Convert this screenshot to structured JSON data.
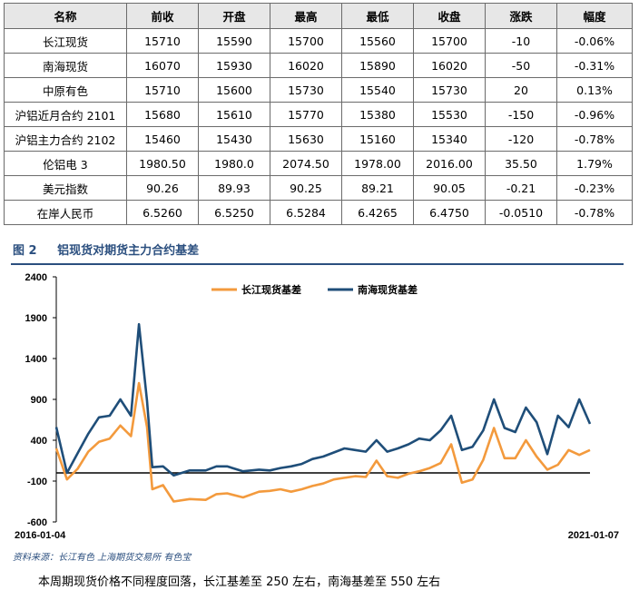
{
  "table": {
    "headers": [
      "名称",
      "前收",
      "开盘",
      "最高",
      "最低",
      "收盘",
      "涨跌",
      "幅度"
    ],
    "rows": [
      [
        "长江现货",
        "15710",
        "15590",
        "15700",
        "15560",
        "15700",
        "-10",
        "-0.06%"
      ],
      [
        "南海现货",
        "16070",
        "15930",
        "16020",
        "15890",
        "16020",
        "-50",
        "-0.31%"
      ],
      [
        "中原有色",
        "15710",
        "15600",
        "15730",
        "15540",
        "15730",
        "20",
        "0.13%"
      ],
      [
        "沪铝近月合约 2101",
        "15680",
        "15610",
        "15770",
        "15380",
        "15530",
        "-150",
        "-0.96%"
      ],
      [
        "沪铝主力合约 2102",
        "15460",
        "15430",
        "15630",
        "15160",
        "15340",
        "-120",
        "-0.78%"
      ],
      [
        "伦铝电 3",
        "1980.50",
        "1980.0",
        "2074.50",
        "1978.00",
        "2016.00",
        "35.50",
        "1.79%"
      ],
      [
        "美元指数",
        "90.26",
        "89.93",
        "90.25",
        "89.21",
        "90.05",
        "-0.21",
        "-0.23%"
      ],
      [
        "在岸人民币",
        "6.5260",
        "6.5250",
        "6.5284",
        "6.4265",
        "6.4750",
        "-0.0510",
        "-0.78%"
      ]
    ]
  },
  "figure": {
    "number": "图 2",
    "title": "铝现货对期货主力合约基差",
    "source": "资料来源：长江有色  上海期货交易所  有色宝",
    "caption": "本周期现货价格不同程度回落，长江基差至 250 左右，南海基差至 550 左右"
  },
  "chart_data": {
    "type": "line",
    "title": "铝现货对期货主力合约基差",
    "xlabel": "",
    "ylabel": "",
    "x_start_label": "2016-01-04",
    "x_end_label": "2021-01-07",
    "ylim": [
      -600,
      2400
    ],
    "yticks": [
      2400,
      1900,
      1400,
      900,
      400,
      -100,
      -600
    ],
    "baseline": 0,
    "legend_position": "top-center",
    "time_axis": [
      0.0,
      0.02,
      0.04,
      0.06,
      0.08,
      0.1,
      0.12,
      0.14,
      0.155,
      0.17,
      0.18,
      0.2,
      0.22,
      0.25,
      0.28,
      0.3,
      0.32,
      0.35,
      0.38,
      0.4,
      0.42,
      0.44,
      0.46,
      0.48,
      0.5,
      0.52,
      0.54,
      0.56,
      0.58,
      0.6,
      0.62,
      0.64,
      0.66,
      0.68,
      0.7,
      0.72,
      0.74,
      0.76,
      0.78,
      0.8,
      0.82,
      0.84,
      0.86,
      0.88,
      0.9,
      0.92,
      0.94,
      0.96,
      0.98,
      1.0
    ],
    "series": [
      {
        "name": "长江现货基差",
        "color": "#f39a3d",
        "values": [
          300,
          -80,
          50,
          260,
          380,
          420,
          580,
          450,
          1100,
          560,
          -200,
          -150,
          -350,
          -320,
          -330,
          -260,
          -250,
          -300,
          -230,
          -220,
          -200,
          -230,
          -200,
          -160,
          -130,
          -80,
          -60,
          -40,
          -50,
          150,
          -40,
          -60,
          -10,
          20,
          60,
          120,
          350,
          -120,
          -80,
          160,
          550,
          180,
          180,
          400,
          200,
          40,
          100,
          280,
          220,
          280
        ]
      },
      {
        "name": "南海现货基差",
        "color": "#1f4e79",
        "values": [
          560,
          0,
          240,
          480,
          680,
          700,
          900,
          700,
          1820,
          880,
          70,
          80,
          -30,
          30,
          30,
          80,
          80,
          20,
          40,
          30,
          60,
          80,
          110,
          170,
          200,
          250,
          300,
          280,
          260,
          400,
          260,
          300,
          350,
          420,
          400,
          520,
          700,
          280,
          320,
          520,
          900,
          550,
          500,
          800,
          620,
          230,
          700,
          560,
          900,
          600
        ]
      }
    ]
  }
}
